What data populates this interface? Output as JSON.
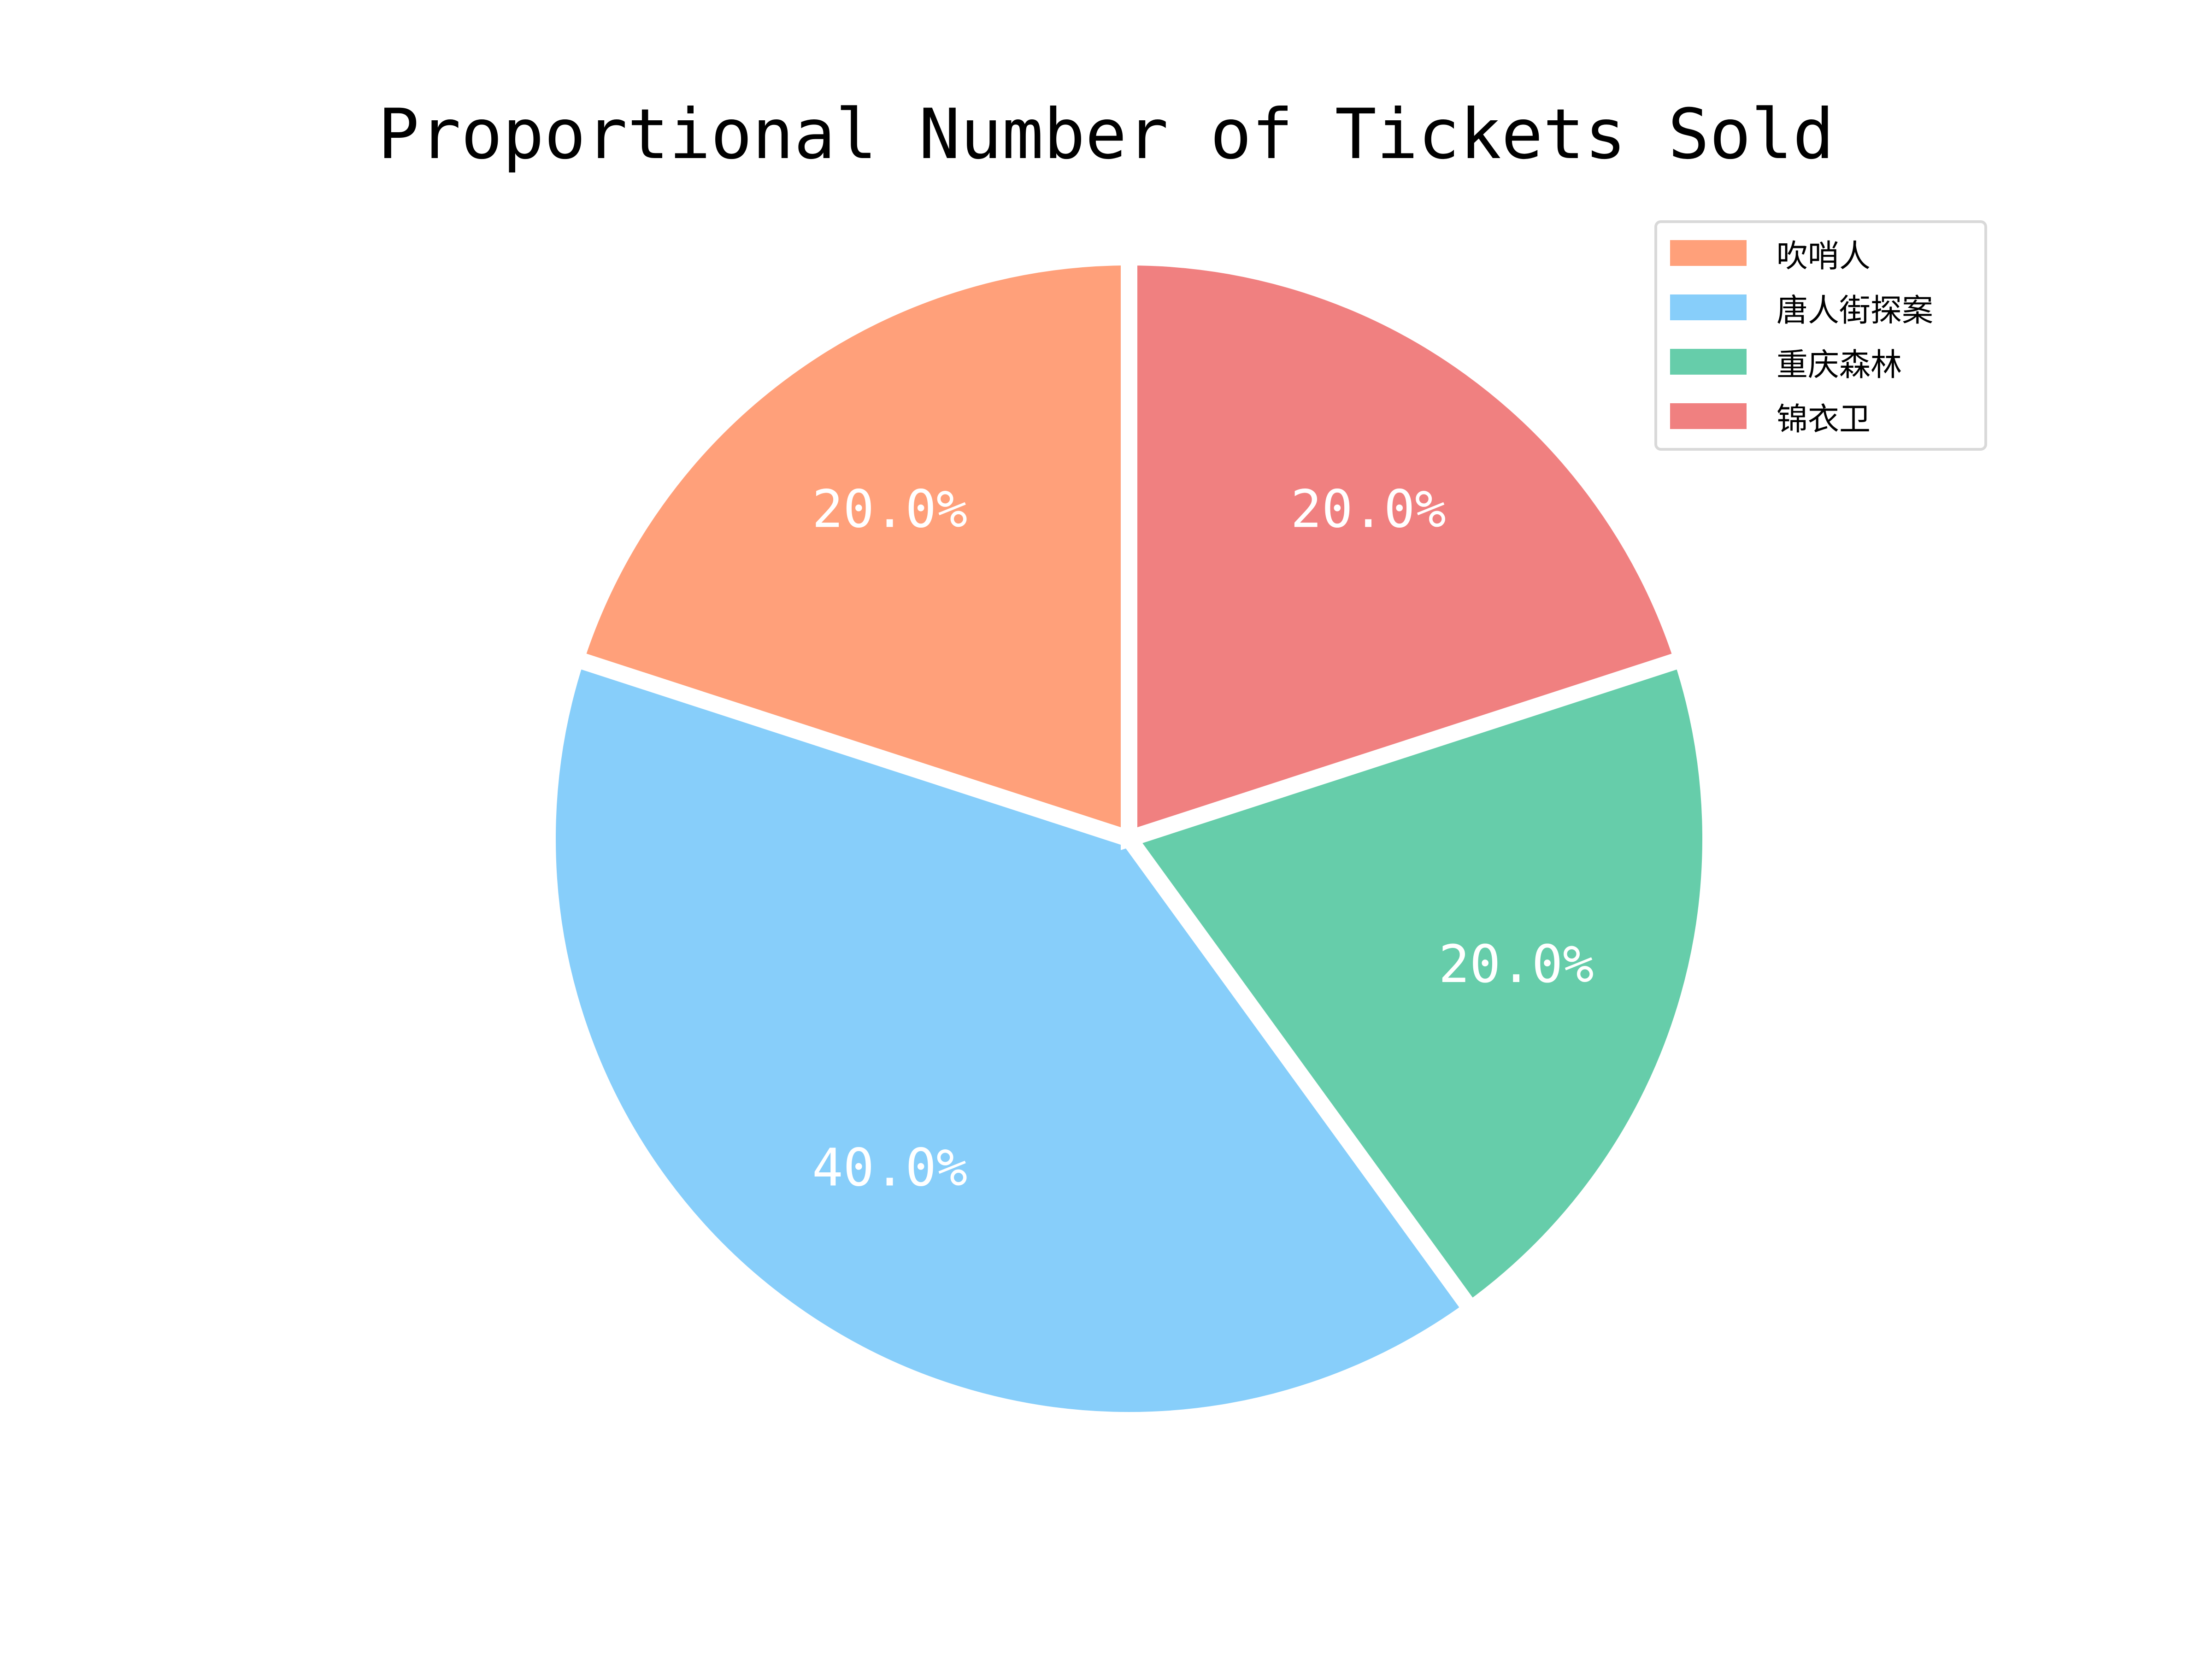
{
  "chart_data": {
    "type": "pie",
    "title": "Proportional Number of Tickets Sold",
    "legend_position": "top-right",
    "start_angle_deg": 90,
    "direction": "counterclockwise",
    "slices": [
      {
        "label": "吹哨人",
        "value": 20.0,
        "pct_label": "20.0%",
        "color": "#FFA07A"
      },
      {
        "label": "唐人街探案",
        "value": 40.0,
        "pct_label": "40.0%",
        "color": "#87CEFA"
      },
      {
        "label": "重庆森林",
        "value": 20.0,
        "pct_label": "20.0%",
        "color": "#66CDAA"
      },
      {
        "label": "锦衣卫",
        "value": 20.0,
        "pct_label": "20.0%",
        "color": "#F08080"
      }
    ]
  }
}
